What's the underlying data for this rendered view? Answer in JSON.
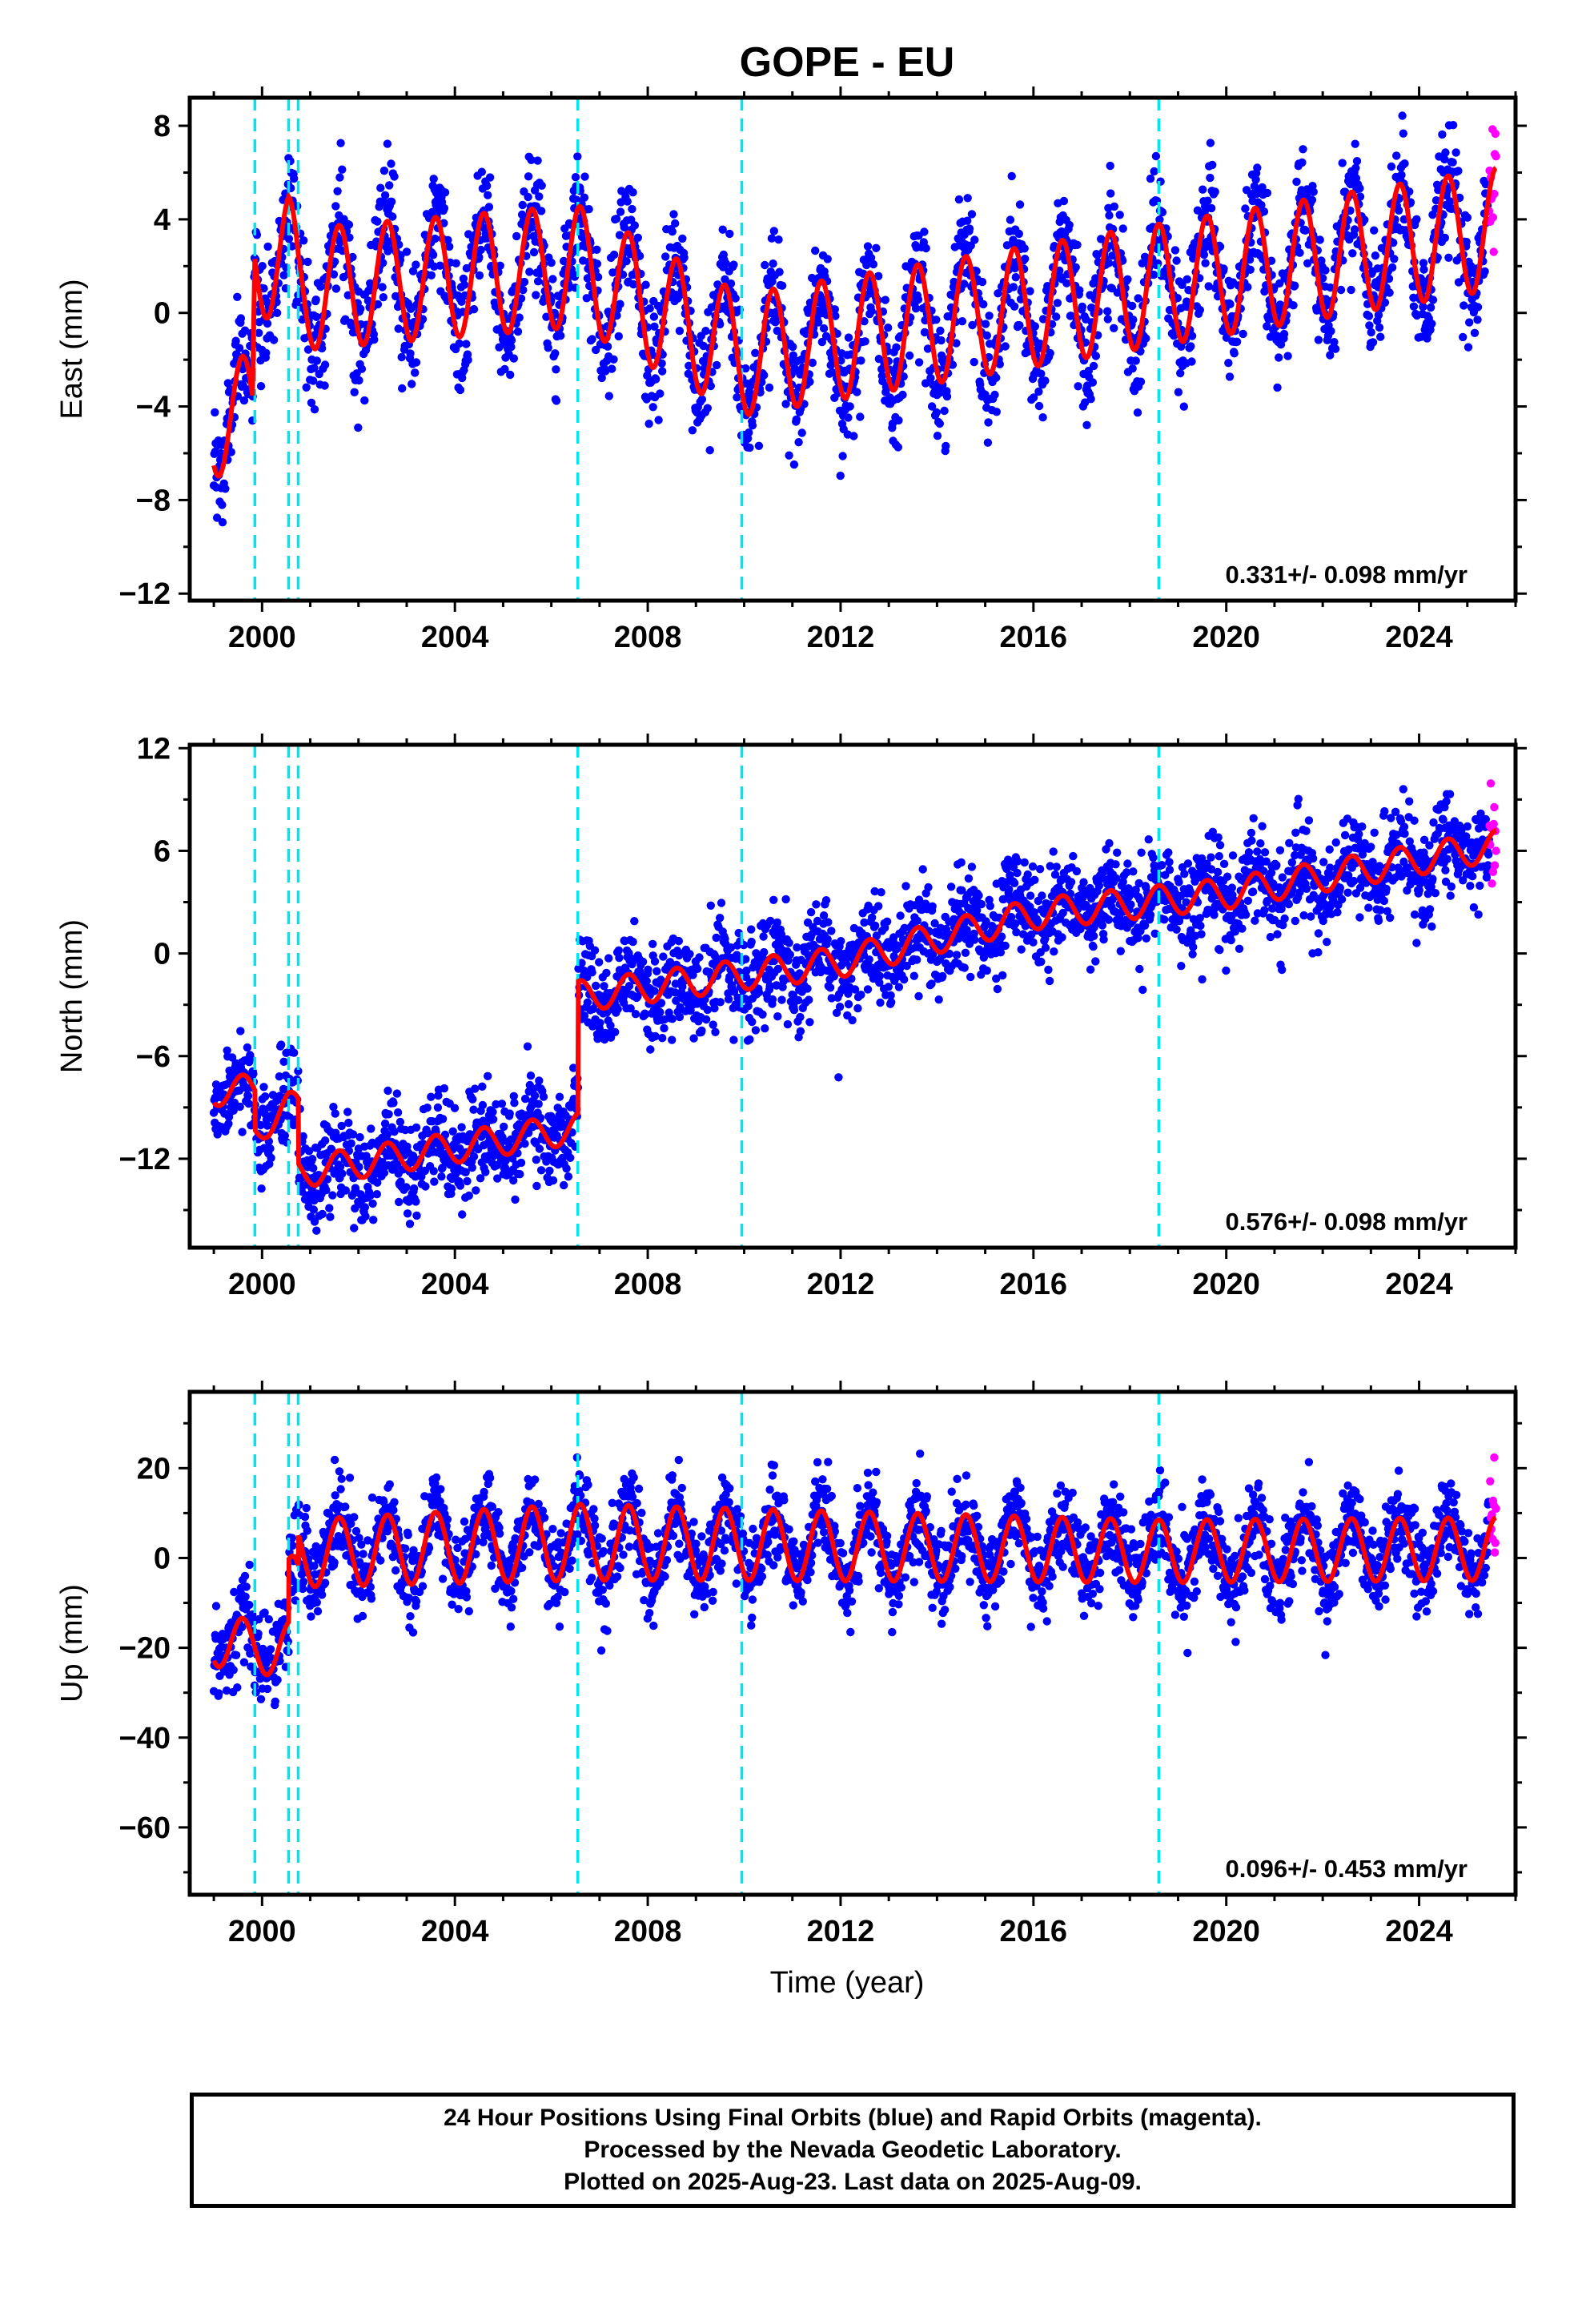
{
  "chart_data": [
    {
      "type": "scatter",
      "title": "GOPE - EU",
      "ylabel": "East (mm)",
      "xlim": [
        1998.5,
        2026.0
      ],
      "ylim": [
        -12.3,
        9.2
      ],
      "xticks": [
        2000,
        2004,
        2008,
        2012,
        2016,
        2020,
        2024
      ],
      "yticks": [
        -12,
        -8,
        -4,
        0,
        4,
        8
      ],
      "rate_label": "0.331+/- 0.098 mm/yr",
      "offsets": [
        1999.85,
        2000.55,
        2000.75,
        2006.55,
        2009.95,
        2018.6
      ],
      "model": {
        "x": [
          1999.0,
          1999.8,
          1999.85,
          2000.55,
          2000.75,
          2006.55,
          2009.95,
          2018.6,
          2025.6
        ],
        "trend": [
          -4.5,
          -4.3,
          2.3,
          2.5,
          1.0,
          2.0,
          -1.8,
          1.2,
          3.6
        ],
        "amplitude": [
          2.5,
          2.5,
          2.6,
          2.6,
          2.6,
          2.6,
          2.6,
          2.6,
          2.6
        ]
      },
      "noise": 1.3,
      "series": [
        {
          "name": "Final Orbits",
          "color": "#0000ff",
          "x_range": [
            1999.0,
            2025.45
          ]
        },
        {
          "name": "Rapid Orbits",
          "color": "#ff00ff",
          "x_range": [
            2025.45,
            2025.6
          ]
        }
      ],
      "fit_color": "#ff0000"
    },
    {
      "type": "scatter",
      "title": "",
      "ylabel": "North (mm)",
      "xlim": [
        1998.5,
        2026.0
      ],
      "ylim": [
        -17.2,
        12.2
      ],
      "xticks": [
        2000,
        2004,
        2008,
        2012,
        2016,
        2020,
        2024
      ],
      "yticks": [
        -12,
        -6,
        0,
        6,
        12
      ],
      "rate_label": "0.576+/- 0.098 mm/yr",
      "offsets": [
        1999.85,
        2000.55,
        2000.75,
        2006.55,
        2009.95,
        2018.6
      ],
      "model": {
        "x": [
          1999.0,
          1999.85,
          1999.86,
          2000.55,
          2000.75,
          2000.76,
          2006.55,
          2006.56,
          2012.0,
          2016.0,
          2020.0,
          2025.6
        ],
        "trend": [
          -8.0,
          -8.0,
          -10.3,
          -9.0,
          -9.0,
          -12.8,
          -10.2,
          -2.5,
          -0.5,
          2.3,
          3.5,
          6.3
        ],
        "amplitude": [
          0.9,
          0.9,
          0.9,
          0.9,
          0.9,
          0.9,
          0.9,
          0.9,
          0.9,
          0.9,
          0.9,
          0.9
        ]
      },
      "noise": 1.4,
      "series": [
        {
          "name": "Final Orbits",
          "color": "#0000ff",
          "x_range": [
            1999.0,
            2025.45
          ]
        },
        {
          "name": "Rapid Orbits",
          "color": "#ff00ff",
          "x_range": [
            2025.45,
            2025.6
          ]
        }
      ],
      "fit_color": "#ff0000"
    },
    {
      "type": "scatter",
      "title": "",
      "ylabel": "Up (mm)",
      "xlabel": "Time (year)",
      "xlim": [
        1998.5,
        2026.0
      ],
      "ylim": [
        -75,
        37
      ],
      "xticks": [
        2000,
        2004,
        2008,
        2012,
        2016,
        2020,
        2024
      ],
      "yticks": [
        -60,
        -40,
        -20,
        0,
        20
      ],
      "rate_label": "0.096+/- 0.453 mm/yr",
      "offsets": [
        1999.85,
        2000.55,
        2000.75,
        2006.55,
        2009.95,
        2018.6
      ],
      "model": {
        "x": [
          1999.0,
          1999.85,
          2000.55,
          2000.56,
          2000.75,
          2000.76,
          2006.55,
          2009.95,
          2018.6,
          2025.6
        ],
        "trend": [
          -18.0,
          -20.0,
          -20.0,
          -6.0,
          -6.0,
          1.0,
          3.5,
          3.0,
          1.5,
          2.0
        ],
        "amplitude": [
          6.0,
          6.0,
          6.0,
          6.0,
          7.5,
          7.5,
          8.5,
          8.0,
          7.0,
          7.0
        ]
      },
      "noise": 5.0,
      "series": [
        {
          "name": "Final Orbits",
          "color": "#0000ff",
          "x_range": [
            1999.0,
            2025.45
          ]
        },
        {
          "name": "Rapid Orbits",
          "color": "#ff00ff",
          "x_range": [
            2025.45,
            2025.6
          ]
        }
      ],
      "fit_color": "#ff0000"
    }
  ],
  "footer": {
    "line1": "24 Hour Positions Using Final Orbits (blue) and Rapid Orbits (magenta).",
    "line2": "Processed by the Nevada Geodetic Laboratory.",
    "line3": "Plotted on 2025-Aug-23. Last data on 2025-Aug-09."
  },
  "colors": {
    "final": "#0000ff",
    "rapid": "#ff00ff",
    "fit": "#ff0000",
    "offset_line": "#00e5ee"
  }
}
